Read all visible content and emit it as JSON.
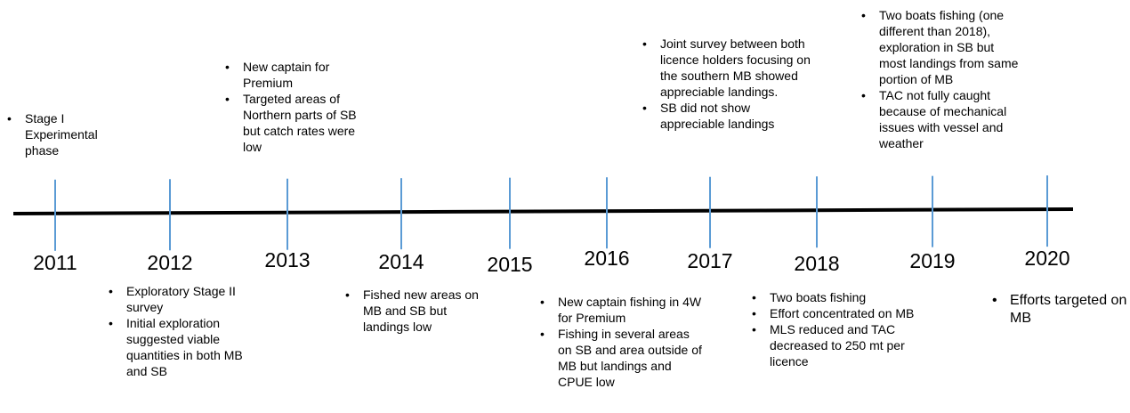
{
  "timeline": {
    "events": [
      {
        "year": "2011",
        "notes": [
          "Stage I Experimental phase"
        ]
      },
      {
        "year": "2012",
        "notes": [
          "Exploratory Stage II survey",
          "Initial exploration suggested viable quantities in both MB and SB"
        ]
      },
      {
        "year": "2013",
        "notes": [
          "New captain for Premium",
          "Targeted areas of Northern parts of SB but catch rates were low"
        ]
      },
      {
        "year": "2014",
        "notes": [
          "Fished new areas on MB and SB but landings low"
        ]
      },
      {
        "year": "2015",
        "notes": []
      },
      {
        "year": "2016",
        "notes": [
          "New captain fishing in 4W for Premium",
          "Fishing in several areas on SB and area outside of MB but landings and CPUE low"
        ]
      },
      {
        "year": "2017",
        "notes": [
          "Joint survey between both licence holders focusing on the southern MB showed appreciable landings.",
          "SB did not show appreciable landings"
        ]
      },
      {
        "year": "2018",
        "notes": [
          "Two boats fishing",
          "Effort concentrated on MB",
          "MLS reduced and TAC decreased to  250 mt per licence"
        ]
      },
      {
        "year": "2019",
        "notes": [
          "Two boats fishing (one different than 2018), exploration in SB but most landings from same portion of MB",
          "TAC not fully caught because of mechanical issues with vessel and weather"
        ]
      },
      {
        "year": "2020",
        "notes": [
          "Efforts targeted on MB"
        ]
      }
    ]
  }
}
